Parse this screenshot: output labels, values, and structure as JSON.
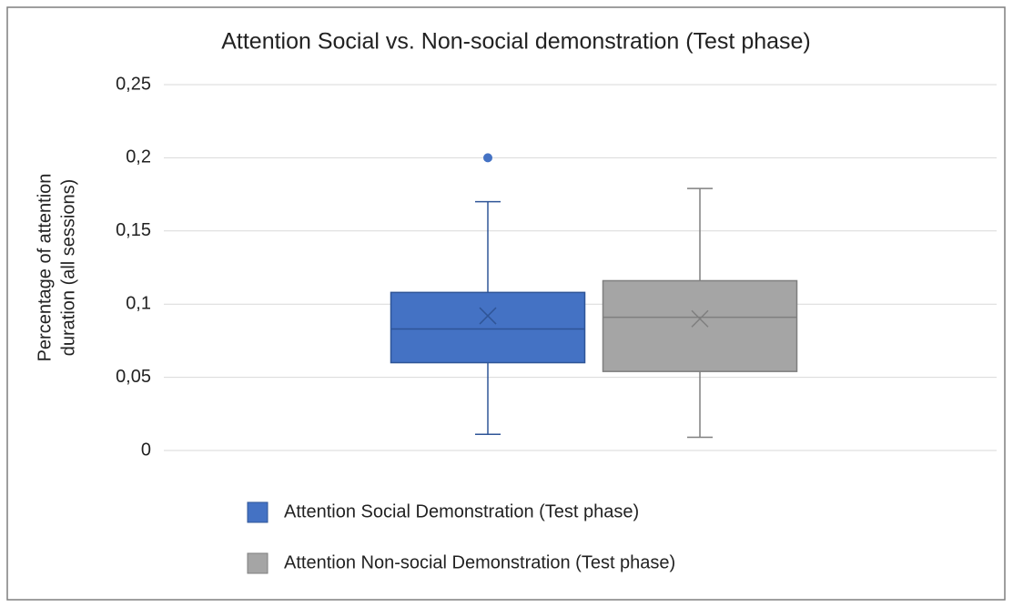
{
  "chart_data": {
    "type": "box",
    "title": "Attention Social vs. Non-social demonstration (Test phase)",
    "y_label": [
      "Percentage of attention",
      "duration (all sessions)"
    ],
    "ylim": [
      0,
      0.25
    ],
    "yticks": [
      0,
      {
        "value": 0.05,
        "label": "0,05"
      },
      {
        "value": 0.1,
        "label": "0,1"
      },
      {
        "value": 0.15,
        "label": "0,15"
      },
      {
        "value": 0.2,
        "label": "0,2"
      },
      {
        "value": 0.25,
        "label": "0,25"
      }
    ],
    "grid": true,
    "legend": "bottom",
    "series": [
      {
        "name": "Attention Social Demonstration (Test phase)",
        "color": "#4472c4",
        "edge": "#2f5597",
        "min": 0.011,
        "q1": 0.06,
        "median": 0.083,
        "q3": 0.108,
        "max": 0.17,
        "mean": 0.092,
        "outliers": [
          0.2
        ]
      },
      {
        "name": "Attention Non-social Demonstration (Test phase)",
        "color": "#a5a5a5",
        "edge": "#7f7f7f",
        "min": 0.009,
        "q1": 0.054,
        "median": 0.091,
        "q3": 0.116,
        "max": 0.179,
        "mean": 0.09,
        "outliers": []
      }
    ]
  }
}
